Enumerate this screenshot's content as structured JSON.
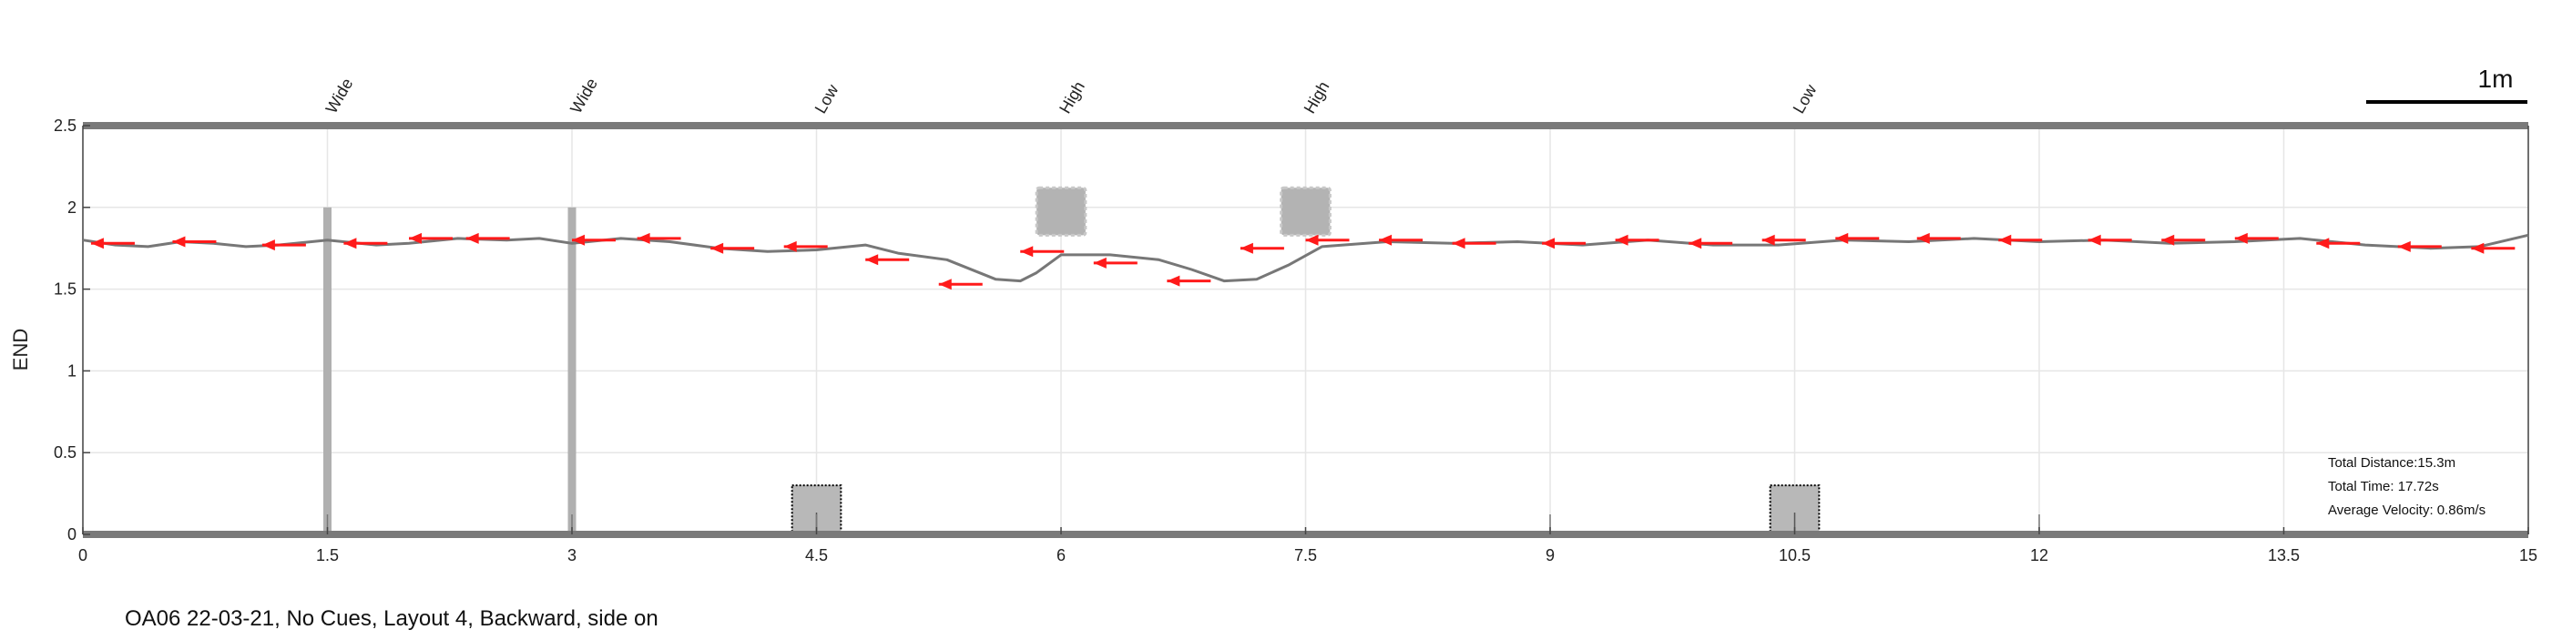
{
  "caption": "OA06 22-03-21, No Cues, Layout 4, Backward, side on",
  "chart_data": {
    "type": "line",
    "ylabel": "END",
    "xlim": [
      0,
      15
    ],
    "ylim": [
      0,
      2.5
    ],
    "xticks": [
      0,
      1.5,
      3,
      4.5,
      6,
      7.5,
      9,
      10.5,
      12,
      13.5,
      15
    ],
    "xtick_labels": [
      "0",
      "1.5",
      "3",
      "4.5",
      "6",
      "7.5",
      "9",
      "10.5",
      "12",
      "13.5",
      "15"
    ],
    "yticks": [
      0,
      0.5,
      1,
      1.5,
      2,
      2.5
    ],
    "ytick_labels": [
      "0",
      "0.5",
      "1",
      "1.5",
      "2",
      "2.5"
    ],
    "grid": true,
    "obstacle_labels": [
      {
        "x": 1.5,
        "text": "Wide"
      },
      {
        "x": 3,
        "text": "Wide"
      },
      {
        "x": 4.5,
        "text": "Low"
      },
      {
        "x": 6,
        "text": "High"
      },
      {
        "x": 7.5,
        "text": "High"
      },
      {
        "x": 10.5,
        "text": "Low"
      }
    ],
    "poles": [
      {
        "x": 1.5,
        "y0": 0,
        "y1": 2
      },
      {
        "x": 3,
        "y0": 0,
        "y1": 2
      }
    ],
    "high_obstacles": [
      {
        "x0": 5.85,
        "x1": 6.15,
        "y0": 1.83,
        "y1": 2.12
      },
      {
        "x0": 7.35,
        "x1": 7.65,
        "y0": 1.83,
        "y1": 2.12
      }
    ],
    "low_obstacles": [
      {
        "x0": 4.35,
        "x1": 4.65,
        "y0": 0,
        "y1": 0.3
      },
      {
        "x0": 10.35,
        "x1": 10.65,
        "y0": 0,
        "y1": 0.3
      }
    ],
    "trajectory": {
      "x": [
        0,
        0.2,
        0.4,
        0.6,
        0.8,
        1.0,
        1.2,
        1.5,
        1.8,
        2.0,
        2.3,
        2.6,
        2.8,
        3.0,
        3.3,
        3.6,
        3.9,
        4.2,
        4.5,
        4.8,
        5.0,
        5.3,
        5.6,
        5.75,
        5.85,
        6.0,
        6.3,
        6.6,
        6.8,
        7.0,
        7.2,
        7.4,
        7.6,
        8.0,
        8.4,
        8.8,
        9.2,
        9.6,
        10.0,
        10.4,
        10.8,
        11.2,
        11.6,
        12.0,
        12.4,
        12.8,
        13.2,
        13.6,
        14.0,
        14.4,
        14.7,
        15.0
      ],
      "y": [
        1.8,
        1.77,
        1.76,
        1.79,
        1.78,
        1.76,
        1.77,
        1.8,
        1.77,
        1.78,
        1.81,
        1.8,
        1.81,
        1.78,
        1.81,
        1.79,
        1.75,
        1.73,
        1.74,
        1.77,
        1.72,
        1.68,
        1.56,
        1.55,
        1.6,
        1.71,
        1.71,
        1.68,
        1.62,
        1.55,
        1.56,
        1.65,
        1.76,
        1.79,
        1.78,
        1.79,
        1.77,
        1.8,
        1.77,
        1.77,
        1.8,
        1.79,
        1.81,
        1.79,
        1.8,
        1.78,
        1.79,
        1.81,
        1.77,
        1.75,
        1.76,
        1.83
      ]
    },
    "arrows": {
      "x": [
        0.05,
        0.55,
        1.1,
        1.6,
        2.0,
        2.35,
        3.0,
        3.4,
        3.85,
        4.3,
        4.8,
        5.25,
        5.75,
        6.2,
        6.65,
        7.1,
        7.5,
        7.95,
        8.4,
        8.95,
        9.4,
        9.85,
        10.3,
        10.75,
        11.25,
        11.75,
        12.3,
        12.75,
        13.2,
        13.7,
        14.2,
        14.65
      ],
      "y": [
        1.78,
        1.79,
        1.77,
        1.78,
        1.81,
        1.81,
        1.8,
        1.81,
        1.75,
        1.76,
        1.68,
        1.53,
        1.73,
        1.66,
        1.55,
        1.75,
        1.8,
        1.8,
        1.78,
        1.78,
        1.8,
        1.78,
        1.8,
        1.81,
        1.81,
        1.8,
        1.8,
        1.8,
        1.81,
        1.78,
        1.76,
        1.75
      ]
    },
    "stats": [
      "Total Distance:15.3m",
      "Total Time: 17.72s",
      "Average Velocity: 0.86m/s"
    ],
    "scale_bar_label": "1m"
  }
}
